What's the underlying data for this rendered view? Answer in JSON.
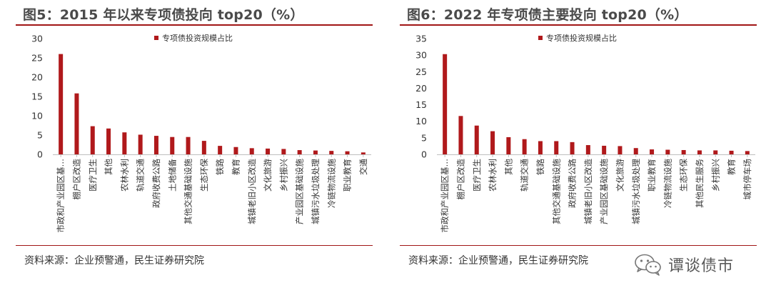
{
  "watermark": {
    "text": "谭谈债市",
    "icon": "wechat-icon"
  },
  "colors": {
    "bar": "#b0191b",
    "rule": "#a11616",
    "axis": "#bfbfbf"
  },
  "chart_data": [
    {
      "type": "bar",
      "title": "图5：2015 年以来专项债投向 top20（%）",
      "source": "资料来源：企业预警通，民生证券研究院",
      "legend": {
        "label": "专项债投资规模占比",
        "position": "top-center"
      },
      "ylim": [
        0,
        30
      ],
      "yticks": [
        "0",
        "5",
        "10",
        "15",
        "20",
        "25",
        "30"
      ],
      "categories": [
        "市政和产业园区基…",
        "棚户区改造",
        "医疗卫生",
        "其他",
        "农林水利",
        "轨道交通",
        "政府收费公路",
        "土地储备",
        "其他交通基础设施",
        "生态环保",
        "铁路",
        "教育",
        "城镇老旧小区改造",
        "文化旅游",
        "乡村振兴",
        "产业园区基础设施",
        "城镇污水垃圾处理",
        "冷链物流设施",
        "职业教育",
        "交通"
      ],
      "values": [
        26.0,
        15.8,
        7.3,
        6.7,
        5.7,
        5.1,
        4.8,
        4.5,
        4.5,
        3.5,
        2.2,
        1.9,
        1.6,
        1.5,
        1.4,
        1.1,
        1.0,
        0.9,
        0.8,
        0.5
      ]
    },
    {
      "type": "bar",
      "title": "图6：2022 年专项债主要投向 top20（%）",
      "source": "资料来源：企业预警通，民生证券研究院",
      "legend": {
        "label": "专项债投资规模占比",
        "position": "top-center"
      },
      "ylim": [
        0,
        35
      ],
      "yticks": [
        "0",
        "5",
        "10",
        "15",
        "20",
        "25",
        "30",
        "35"
      ],
      "categories": [
        "市政和产业园区基…",
        "棚户区改造",
        "医疗卫生",
        "农林水利",
        "其他",
        "轨道交通",
        "铁路",
        "其他交通基础设施",
        "政府收费公路",
        "城镇老旧小区改造",
        "产业园区基础设施",
        "文化旅游",
        "城镇污水垃圾处理",
        "职业教育",
        "冷链物流设施",
        "生态环保",
        "其他民生服务",
        "乡村振兴",
        "教育",
        "城市停车场"
      ],
      "values": [
        30.3,
        11.6,
        8.7,
        7.0,
        5.2,
        4.6,
        4.0,
        4.0,
        3.7,
        2.8,
        2.6,
        2.5,
        1.9,
        1.5,
        1.4,
        1.3,
        1.2,
        1.2,
        1.1,
        1.0
      ]
    }
  ]
}
